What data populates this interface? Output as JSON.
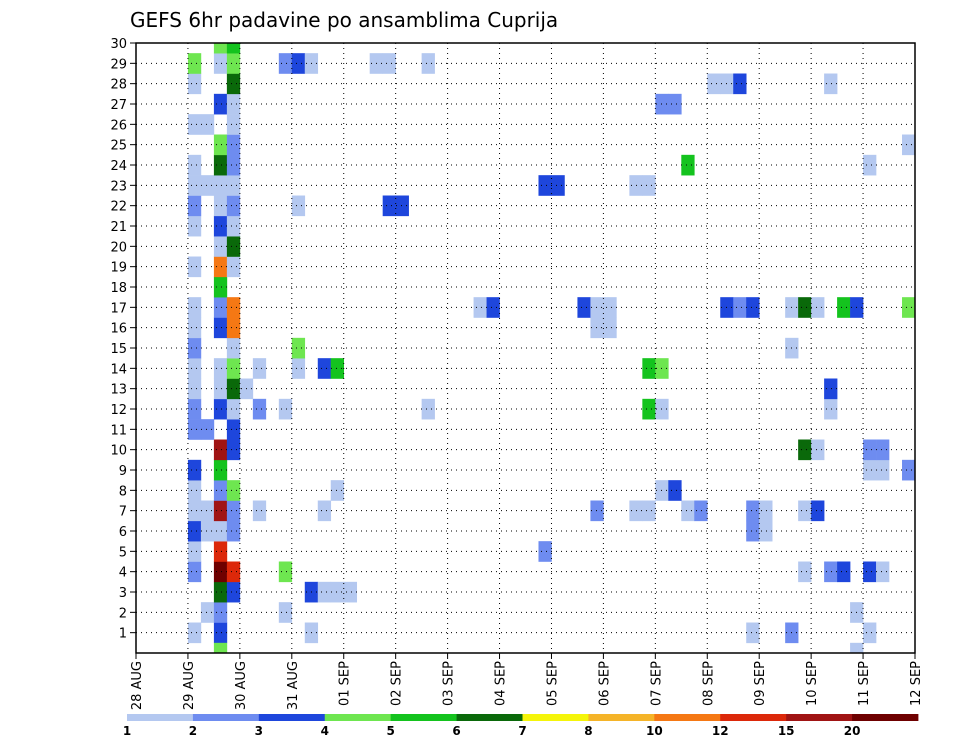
{
  "chart_data": {
    "type": "heatmap",
    "title": "GEFS 6hr padavine po ansamblima Cuprija",
    "xlabel": "",
    "ylabel": "",
    "x_tick_labels": [
      "28 AUG",
      "29 AUG",
      "30 AUG",
      "31 AUG",
      "01 SEP",
      "02 SEP",
      "03 SEP",
      "04 SEP",
      "05 SEP",
      "06 SEP",
      "07 SEP",
      "08 SEP",
      "09 SEP",
      "10 SEP",
      "11 SEP",
      "12 SEP"
    ],
    "xlim": [
      0,
      60
    ],
    "x_unit": "6-hour steps from 28 AUG 00Z",
    "ylim": [
      0,
      30
    ],
    "y_ticks": [
      1,
      2,
      3,
      4,
      5,
      6,
      7,
      8,
      9,
      10,
      11,
      12,
      13,
      14,
      15,
      16,
      17,
      18,
      19,
      20,
      21,
      22,
      23,
      24,
      25,
      26,
      27,
      28,
      29,
      30
    ],
    "grid": true,
    "colorbar": {
      "position": "bottom",
      "tick_labels": [
        "1",
        "2",
        "3",
        "4",
        "5",
        "6",
        "7",
        "8",
        "10",
        "12",
        "15",
        "20"
      ],
      "colors": [
        "#b4c8f0",
        "#6e8cf0",
        "#1e46dc",
        "#6ee650",
        "#14c31e",
        "#0a690a",
        "#f5f50a",
        "#f5b428",
        "#f57814",
        "#dc280a",
        "#a01414",
        "#6e0000"
      ]
    },
    "cells": [
      [
        4,
        1,
        1
      ],
      [
        6,
        1,
        3
      ],
      [
        13,
        1,
        1
      ],
      [
        47,
        1,
        1
      ],
      [
        50,
        1,
        2
      ],
      [
        56,
        1,
        1
      ],
      [
        5,
        2,
        1
      ],
      [
        6,
        2,
        2
      ],
      [
        11,
        2,
        1
      ],
      [
        55,
        2,
        1
      ],
      [
        6,
        3,
        6
      ],
      [
        7,
        3,
        3
      ],
      [
        13,
        3,
        3
      ],
      [
        14,
        3,
        1
      ],
      [
        15,
        3,
        1
      ],
      [
        16,
        3,
        1
      ],
      [
        4,
        4,
        2
      ],
      [
        6,
        4,
        12
      ],
      [
        7,
        4,
        10
      ],
      [
        11,
        4,
        4
      ],
      [
        51,
        4,
        1
      ],
      [
        53,
        4,
        2
      ],
      [
        54,
        4,
        3
      ],
      [
        56,
        4,
        3
      ],
      [
        57,
        4,
        1
      ],
      [
        4,
        5,
        1
      ],
      [
        6,
        5,
        10
      ],
      [
        31,
        5,
        2
      ],
      [
        4,
        6,
        3
      ],
      [
        5,
        6,
        1
      ],
      [
        6,
        6,
        1
      ],
      [
        7,
        6,
        2
      ],
      [
        47,
        6,
        2
      ],
      [
        48,
        6,
        1
      ],
      [
        4,
        7,
        1
      ],
      [
        5,
        7,
        1
      ],
      [
        6,
        7,
        11
      ],
      [
        7,
        7,
        2
      ],
      [
        9,
        7,
        1
      ],
      [
        14,
        7,
        1
      ],
      [
        35,
        7,
        2
      ],
      [
        38,
        7,
        1
      ],
      [
        39,
        7,
        1
      ],
      [
        42,
        7,
        1
      ],
      [
        43,
        7,
        2
      ],
      [
        47,
        7,
        2
      ],
      [
        48,
        7,
        1
      ],
      [
        51,
        7,
        1
      ],
      [
        52,
        7,
        3
      ],
      [
        4,
        8,
        1
      ],
      [
        6,
        8,
        2
      ],
      [
        7,
        8,
        4
      ],
      [
        15,
        8,
        1
      ],
      [
        40,
        8,
        1
      ],
      [
        41,
        8,
        3
      ],
      [
        4,
        9,
        3
      ],
      [
        6,
        9,
        5
      ],
      [
        56,
        9,
        1
      ],
      [
        57,
        9,
        1
      ],
      [
        59,
        9,
        2
      ],
      [
        6,
        10,
        11
      ],
      [
        7,
        10,
        3
      ],
      [
        51,
        10,
        6
      ],
      [
        52,
        10,
        1
      ],
      [
        56,
        10,
        2
      ],
      [
        57,
        10,
        2
      ],
      [
        4,
        11,
        2
      ],
      [
        5,
        11,
        2
      ],
      [
        7,
        11,
        3
      ],
      [
        4,
        12,
        2
      ],
      [
        6,
        12,
        3
      ],
      [
        7,
        12,
        1
      ],
      [
        9,
        12,
        2
      ],
      [
        11,
        12,
        1
      ],
      [
        22,
        12,
        1
      ],
      [
        39,
        12,
        5
      ],
      [
        40,
        12,
        1
      ],
      [
        53,
        12,
        1
      ],
      [
        4,
        13,
        1
      ],
      [
        6,
        13,
        1
      ],
      [
        7,
        13,
        6
      ],
      [
        8,
        13,
        1
      ],
      [
        53,
        13,
        3
      ],
      [
        4,
        14,
        1
      ],
      [
        6,
        14,
        1
      ],
      [
        7,
        14,
        4
      ],
      [
        9,
        14,
        1
      ],
      [
        12,
        14,
        1
      ],
      [
        14,
        14,
        3
      ],
      [
        15,
        14,
        5
      ],
      [
        39,
        14,
        5
      ],
      [
        40,
        14,
        4
      ],
      [
        4,
        15,
        2
      ],
      [
        7,
        15,
        1
      ],
      [
        12,
        15,
        4
      ],
      [
        50,
        15,
        1
      ],
      [
        4,
        16,
        1
      ],
      [
        6,
        16,
        3
      ],
      [
        7,
        16,
        9
      ],
      [
        35,
        16,
        1
      ],
      [
        36,
        16,
        1
      ],
      [
        4,
        17,
        1
      ],
      [
        6,
        17,
        2
      ],
      [
        7,
        17,
        9
      ],
      [
        26,
        17,
        1
      ],
      [
        27,
        17,
        3
      ],
      [
        34,
        17,
        3
      ],
      [
        35,
        17,
        1
      ],
      [
        36,
        17,
        1
      ],
      [
        45,
        17,
        3
      ],
      [
        46,
        17,
        2
      ],
      [
        47,
        17,
        3
      ],
      [
        50,
        17,
        1
      ],
      [
        51,
        17,
        6
      ],
      [
        52,
        17,
        1
      ],
      [
        54,
        17,
        5
      ],
      [
        55,
        17,
        3
      ],
      [
        59,
        17,
        4
      ],
      [
        6,
        18,
        5
      ],
      [
        4,
        19,
        1
      ],
      [
        6,
        19,
        9
      ],
      [
        7,
        19,
        1
      ],
      [
        6,
        20,
        1
      ],
      [
        7,
        20,
        6
      ],
      [
        4,
        21,
        1
      ],
      [
        6,
        21,
        3
      ],
      [
        7,
        21,
        1
      ],
      [
        4,
        22,
        2
      ],
      [
        6,
        22,
        1
      ],
      [
        7,
        22,
        2
      ],
      [
        12,
        22,
        1
      ],
      [
        19,
        22,
        3
      ],
      [
        20,
        22,
        3
      ],
      [
        4,
        23,
        1
      ],
      [
        5,
        23,
        1
      ],
      [
        6,
        23,
        1
      ],
      [
        7,
        23,
        1
      ],
      [
        31,
        23,
        3
      ],
      [
        32,
        23,
        3
      ],
      [
        38,
        23,
        1
      ],
      [
        39,
        23,
        1
      ],
      [
        4,
        24,
        1
      ],
      [
        6,
        24,
        6
      ],
      [
        7,
        24,
        2
      ],
      [
        42,
        24,
        5
      ],
      [
        56,
        24,
        1
      ],
      [
        6,
        25,
        4
      ],
      [
        7,
        25,
        2
      ],
      [
        59,
        25,
        1
      ],
      [
        4,
        26,
        1
      ],
      [
        5,
        26,
        1
      ],
      [
        7,
        26,
        1
      ],
      [
        6,
        27,
        3
      ],
      [
        7,
        27,
        1
      ],
      [
        40,
        27,
        2
      ],
      [
        41,
        27,
        2
      ],
      [
        4,
        28,
        1
      ],
      [
        7,
        28,
        6
      ],
      [
        44,
        28,
        1
      ],
      [
        45,
        28,
        1
      ],
      [
        46,
        28,
        3
      ],
      [
        53,
        28,
        1
      ],
      [
        4,
        29,
        4
      ],
      [
        6,
        29,
        1
      ],
      [
        7,
        29,
        4
      ],
      [
        11,
        29,
        2
      ],
      [
        12,
        29,
        3
      ],
      [
        13,
        29,
        1
      ],
      [
        18,
        29,
        1
      ],
      [
        19,
        29,
        1
      ],
      [
        22,
        29,
        1
      ],
      [
        6,
        30,
        4
      ],
      [
        7,
        30,
        5
      ],
      [
        6,
        0,
        4
      ],
      [
        55,
        0,
        1
      ]
    ]
  }
}
